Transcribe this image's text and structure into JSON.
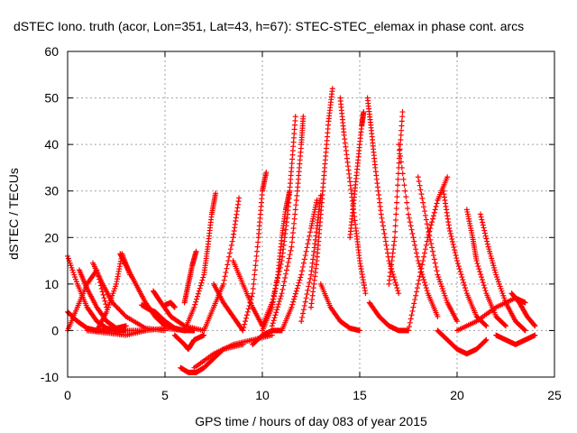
{
  "chart_data": {
    "type": "scatter",
    "title": "dSTEC Iono. truth (acor, Lon=351, Lat=43, h=67): STEC-STEC_elemax in phase cont. arcs",
    "xlabel": "GPS time / hours of day 083 of year 2015",
    "ylabel": "dSTEC  / TECUs",
    "xlim": [
      0,
      25
    ],
    "ylim": [
      -10,
      60
    ],
    "xticks": [
      "0",
      "5",
      "10",
      "15",
      "20",
      "25"
    ],
    "yticks": [
      "-10",
      "0",
      "10",
      "20",
      "30",
      "40",
      "50",
      "60"
    ],
    "grid": true,
    "marker": "plus",
    "color": "#ff0000",
    "series": [
      {
        "x": [
          0.0,
          0.5,
          1.0,
          1.5,
          2.0,
          2.5,
          3.0
        ],
        "y": [
          16,
          10,
          5,
          2,
          0.5,
          0,
          0
        ]
      },
      {
        "x": [
          0.0,
          0.5,
          1.0,
          1.5,
          2.0
        ],
        "y": [
          0,
          5,
          10,
          13,
          5
        ]
      },
      {
        "x": [
          0.6,
          1.0,
          1.5,
          2.0,
          2.5,
          3.0,
          4.0
        ],
        "y": [
          13,
          9,
          5,
          2,
          0.5,
          0,
          0
        ]
      },
      {
        "x": [
          0.0,
          0.5,
          1.0,
          1.5,
          2.0,
          2.5,
          3.0
        ],
        "y": [
          4,
          2,
          0.5,
          0,
          0,
          0.5,
          1
        ]
      },
      {
        "x": [
          1.3,
          1.8,
          2.3,
          3.0,
          4.0,
          5.0
        ],
        "y": [
          14.5,
          10,
          6,
          3,
          0.5,
          0
        ]
      },
      {
        "x": [
          1.0,
          2.0,
          3.0,
          4.0,
          5.0,
          6.0
        ],
        "y": [
          0,
          -0.5,
          -1,
          0,
          0.5,
          0
        ]
      },
      {
        "x": [
          1.5,
          2.0,
          2.5,
          2.8,
          3.2
        ],
        "y": [
          0,
          4,
          10,
          16.5,
          12
        ]
      },
      {
        "x": [
          2.7,
          3.0,
          3.5,
          4.0,
          4.5,
          5.0,
          6.0
        ],
        "y": [
          16.5,
          14,
          10,
          6,
          3,
          1,
          0
        ]
      },
      {
        "x": [
          3.8,
          4.2,
          4.5,
          5.0,
          5.5
        ],
        "y": [
          5.5,
          4.5,
          4,
          2,
          0.5
        ]
      },
      {
        "x": [
          4.4,
          4.8,
          5.3,
          6.0,
          7.0
        ],
        "y": [
          8.5,
          6,
          3,
          1,
          0
        ]
      },
      {
        "x": [
          4.5,
          5.0,
          5.5,
          6.0,
          6.5
        ],
        "y": [
          3,
          1.5,
          0.5,
          0,
          0
        ]
      },
      {
        "x": [
          5.0,
          5.3,
          5.5
        ],
        "y": [
          5.5,
          6,
          5
        ]
      },
      {
        "x": [
          5.5,
          6.0,
          6.2,
          6.5,
          7.0
        ],
        "y": [
          -1,
          -3,
          -4,
          -2,
          -1
        ]
      },
      {
        "x": [
          6.0,
          6.2,
          6.4,
          6.6
        ],
        "y": [
          6,
          10,
          14,
          17
        ]
      },
      {
        "x": [
          5.8,
          6.2,
          6.6,
          7.0,
          7.5,
          8.0,
          9.0
        ],
        "y": [
          -8,
          -9,
          -9,
          -8,
          -6,
          -4,
          -3
        ]
      },
      {
        "x": [
          6.0,
          6.5,
          7.0,
          7.2,
          7.4,
          7.6
        ],
        "y": [
          0,
          5,
          12,
          18,
          25,
          29.5
        ]
      },
      {
        "x": [
          6.5,
          7.5,
          8.5,
          9.5,
          10.5
        ],
        "y": [
          -8,
          -5,
          -3,
          -2,
          -1
        ]
      },
      {
        "x": [
          7.0,
          7.5,
          8.0,
          8.5,
          8.8
        ],
        "y": [
          0,
          5,
          10,
          20,
          28.5
        ]
      },
      {
        "x": [
          7.5,
          8.0,
          8.5,
          9.0
        ],
        "y": [
          10,
          6,
          3,
          0
        ]
      },
      {
        "x": [
          8.5,
          9.0,
          9.5,
          10.0
        ],
        "y": [
          15,
          10,
          5,
          1
        ]
      },
      {
        "x": [
          9.0,
          9.5,
          9.8,
          10.0,
          10.2
        ],
        "y": [
          0,
          8,
          20,
          30,
          34
        ]
      },
      {
        "x": [
          9.5,
          10.0,
          10.5,
          11.0
        ],
        "y": [
          -3,
          -1,
          0,
          0
        ]
      },
      {
        "x": [
          10.0,
          10.5,
          10.8,
          11.0,
          11.2,
          11.4
        ],
        "y": [
          0,
          5,
          12,
          20,
          26,
          30
        ]
      },
      {
        "x": [
          10.0,
          10.5,
          11.0,
          11.3,
          11.5,
          11.7
        ],
        "y": [
          1,
          6,
          15,
          25,
          35,
          46
        ]
      },
      {
        "x": [
          10.5,
          11.0,
          11.5,
          11.8,
          12.0,
          12.1
        ],
        "y": [
          1,
          8,
          18,
          30,
          40,
          46
        ]
      },
      {
        "x": [
          11.0,
          11.5,
          12.0,
          12.5,
          12.8
        ],
        "y": [
          0,
          5,
          12,
          22,
          28
        ]
      },
      {
        "x": [
          12.0,
          12.5,
          12.8,
          13.0
        ],
        "y": [
          2,
          12,
          22,
          29
        ]
      },
      {
        "x": [
          12.5,
          12.8,
          13.0,
          13.2,
          13.4,
          13.6
        ],
        "y": [
          5,
          15,
          25,
          35,
          45,
          52
        ]
      },
      {
        "x": [
          13.0,
          13.5,
          14.0,
          14.5,
          15.0
        ],
        "y": [
          10,
          5,
          2,
          0.5,
          0
        ]
      },
      {
        "x": [
          14.0,
          14.2,
          14.5,
          14.8,
          15.0,
          15.3
        ],
        "y": [
          50,
          42,
          32,
          22,
          15,
          8
        ]
      },
      {
        "x": [
          14.5,
          14.7,
          14.9,
          15.1,
          15.2
        ],
        "y": [
          20,
          28,
          36,
          44,
          47
        ]
      },
      {
        "x": [
          15.4,
          15.6,
          15.8,
          16.1,
          16.5,
          17.0
        ],
        "y": [
          50,
          43,
          35,
          25,
          15,
          8
        ]
      },
      {
        "x": [
          15.5,
          16.0,
          16.5,
          17.0,
          17.5
        ],
        "y": [
          6,
          3,
          1,
          0,
          0
        ]
      },
      {
        "x": [
          16.5,
          16.8,
          17.0,
          17.2
        ],
        "y": [
          10,
          20,
          35,
          47
        ]
      },
      {
        "x": [
          17.0,
          17.5,
          18.0,
          18.5,
          19.0
        ],
        "y": [
          40,
          25,
          15,
          8,
          3
        ]
      },
      {
        "x": [
          17.5,
          18.0,
          18.5,
          19.0,
          19.5
        ],
        "y": [
          0,
          10,
          20,
          28,
          33
        ]
      },
      {
        "x": [
          18.0,
          18.5,
          19.0,
          19.5,
          20.0
        ],
        "y": [
          33,
          22,
          12,
          6,
          2
        ]
      },
      {
        "x": [
          19.3,
          19.6,
          20.0,
          20.5,
          21.0,
          21.5
        ],
        "y": [
          30,
          22,
          15,
          8,
          3,
          1
        ]
      },
      {
        "x": [
          19.0,
          19.5,
          20.0,
          20.5,
          21.0,
          21.5
        ],
        "y": [
          0,
          -2,
          -4,
          -5,
          -4,
          -2
        ]
      },
      {
        "x": [
          20.5,
          20.8,
          21.0,
          21.5,
          22.0,
          22.5
        ],
        "y": [
          26,
          20,
          15,
          8,
          3,
          1
        ]
      },
      {
        "x": [
          21.2,
          21.6,
          22.0,
          22.5,
          23.0,
          23.5
        ],
        "y": [
          25,
          18,
          12,
          6,
          2,
          0
        ]
      },
      {
        "x": [
          22.0,
          22.5,
          23.0,
          23.5,
          24.0
        ],
        "y": [
          -1,
          -2,
          -3,
          -2,
          -1
        ]
      },
      {
        "x": [
          22.8,
          23.2,
          23.6,
          24.0
        ],
        "y": [
          8,
          6,
          3,
          1
        ]
      },
      {
        "x": [
          20.0,
          21.0,
          22.0,
          23.0,
          23.5
        ],
        "y": [
          0,
          2,
          5,
          7,
          6
        ]
      }
    ]
  }
}
